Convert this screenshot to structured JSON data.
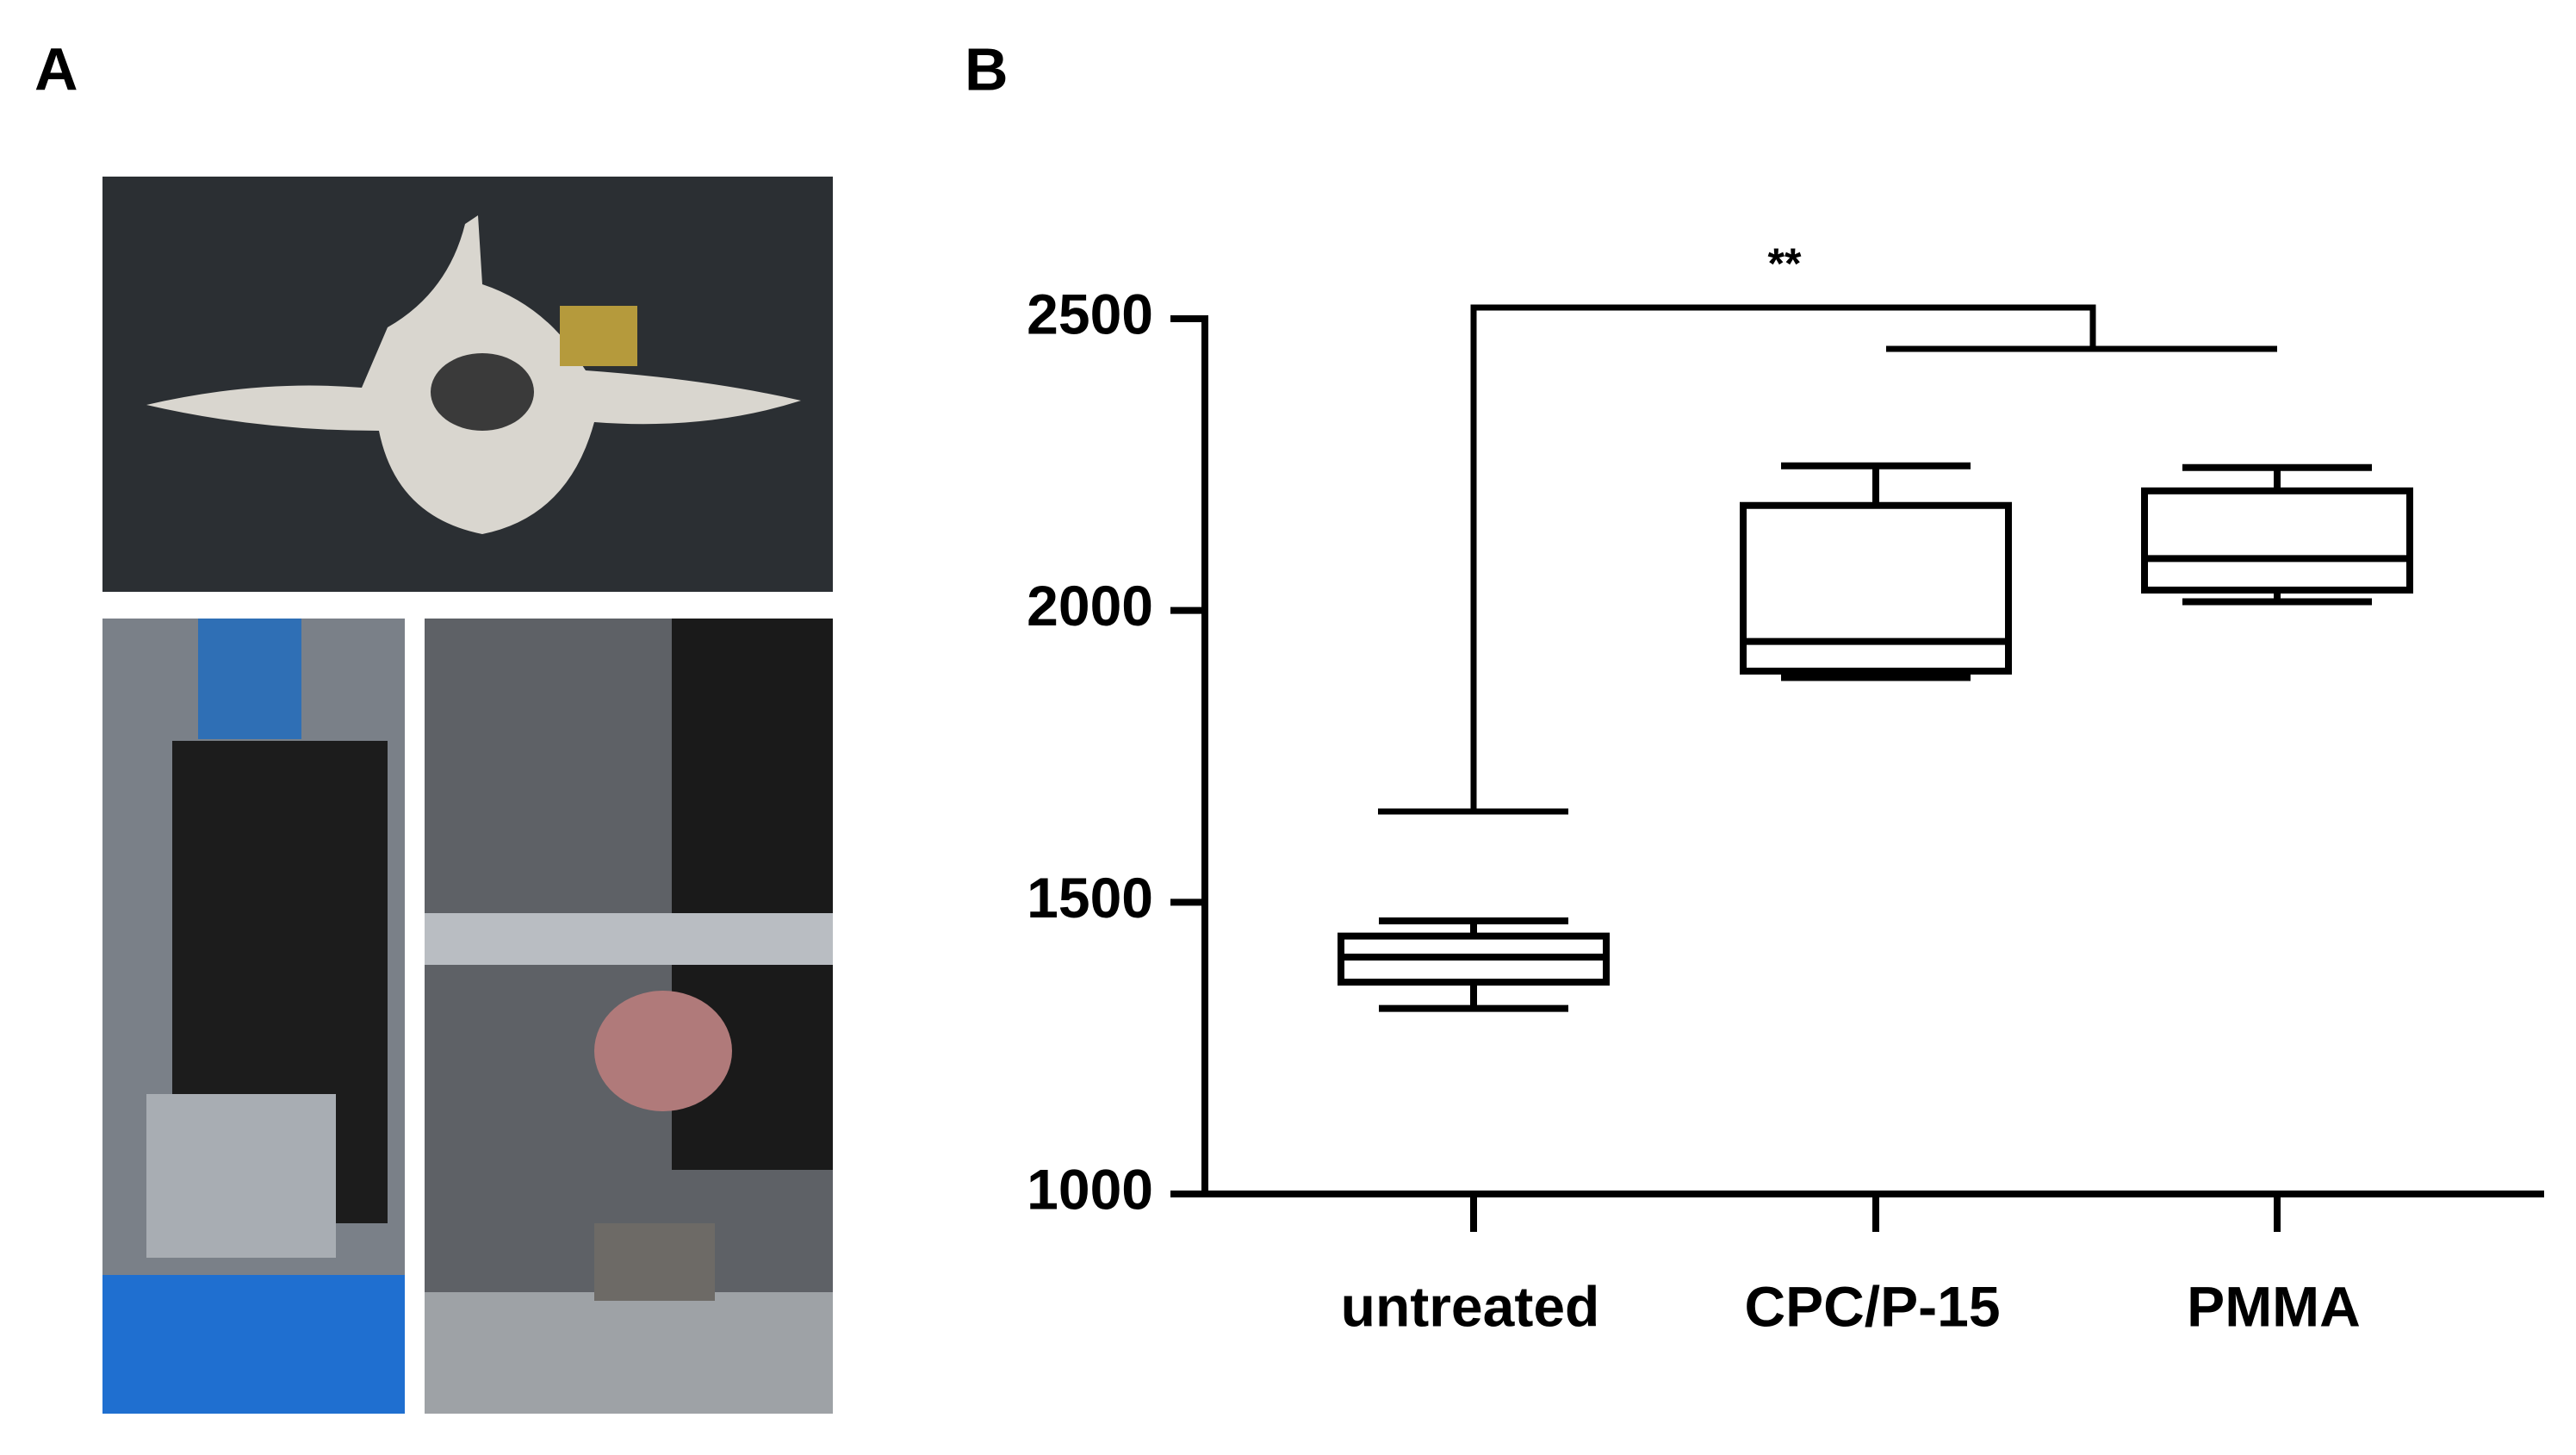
{
  "panels": {
    "a": {
      "label": "A"
    },
    "b": {
      "label": "B"
    }
  },
  "chart_data": {
    "type": "box",
    "annotation": "**",
    "categories": [
      "untreated",
      "CPC/P-15",
      "PMMA"
    ],
    "boxes": [
      {
        "min": 1318,
        "q1": 1363,
        "median": 1406,
        "q3": 1442,
        "max": 1468
      },
      {
        "min": 1885,
        "q1": 1896,
        "median": 1947,
        "q3": 2180,
        "max": 2248
      },
      {
        "min": 2015,
        "q1": 2035,
        "median": 2089,
        "q3": 2205,
        "max": 2245
      }
    ],
    "color": "#000000",
    "ylim": [
      1000,
      2500
    ],
    "yticks": [
      1000,
      1500,
      2000,
      2500
    ],
    "grid": false
  }
}
